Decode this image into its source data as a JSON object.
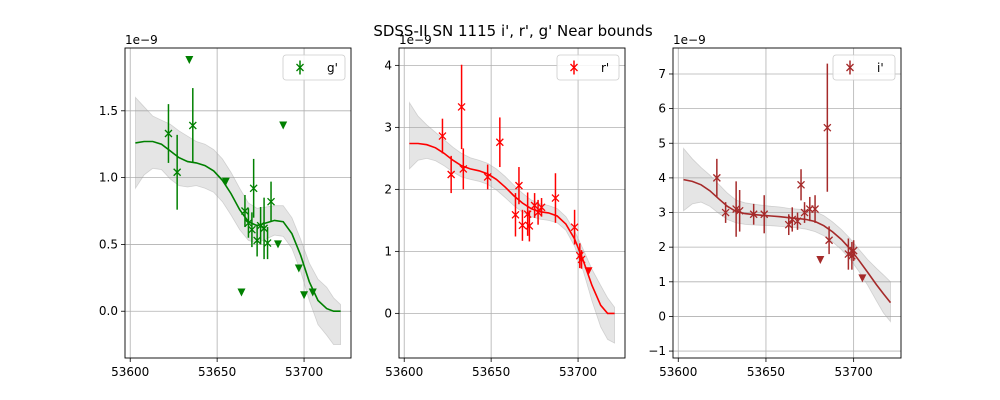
{
  "figure": {
    "title": "SDSS-II SN 1115  i', r', g' Near bounds"
  },
  "chart_data": [
    {
      "type": "scatter",
      "panel": "g",
      "exponent_label": "1e−9",
      "xlim": [
        53597,
        53727
      ],
      "ylim": [
        -0.35,
        1.97
      ],
      "xticks": [
        53600,
        53650,
        53700
      ],
      "yticks": [
        0.0,
        0.5,
        1.0,
        1.5
      ],
      "ytick_labels": [
        "0.0",
        "0.5",
        "1.0",
        "1.5"
      ],
      "grid": true,
      "legend": {
        "position": "top-right",
        "label": "g'"
      },
      "color": "#008000",
      "points": [
        {
          "x": 53622,
          "y": 1.33,
          "err": 0.22
        },
        {
          "x": 53627,
          "y": 1.04,
          "err": 0.28
        },
        {
          "x": 53636,
          "y": 1.39,
          "err": 0.28
        },
        {
          "x": 53666,
          "y": 0.75,
          "err": 0.12
        },
        {
          "x": 53668,
          "y": 0.66,
          "err": 0.11
        },
        {
          "x": 53670,
          "y": 0.61,
          "err": 0.13
        },
        {
          "x": 53671,
          "y": 0.92,
          "err": 0.22
        },
        {
          "x": 53673,
          "y": 0.53,
          "err": 0.12
        },
        {
          "x": 53675,
          "y": 0.64,
          "err": 0.14
        },
        {
          "x": 53677,
          "y": 0.62,
          "err": 0.23
        },
        {
          "x": 53679,
          "y": 0.51,
          "err": 0.12
        },
        {
          "x": 53681,
          "y": 0.82,
          "err": 0.15
        }
      ],
      "upper_limits": [
        {
          "x": 53634,
          "y": 1.88
        },
        {
          "x": 53655,
          "y": 0.97
        },
        {
          "x": 53664,
          "y": 0.14
        },
        {
          "x": 53685,
          "y": 0.5
        },
        {
          "x": 53688,
          "y": 1.39
        },
        {
          "x": 53697,
          "y": 0.32
        },
        {
          "x": 53700,
          "y": 0.12
        },
        {
          "x": 53705,
          "y": 0.14
        }
      ],
      "model": {
        "x": [
          53603,
          53608,
          53613,
          53618,
          53623,
          53628,
          53633,
          53638,
          53643,
          53648,
          53653,
          53658,
          53663,
          53668,
          53673,
          53678,
          53683,
          53688,
          53693,
          53698,
          53703,
          53708,
          53713,
          53717,
          53721
        ],
        "y": [
          1.26,
          1.27,
          1.27,
          1.25,
          1.2,
          1.15,
          1.12,
          1.11,
          1.09,
          1.05,
          0.98,
          0.88,
          0.76,
          0.67,
          0.64,
          0.66,
          0.68,
          0.67,
          0.58,
          0.42,
          0.22,
          0.08,
          0.02,
          0.0,
          0.0
        ],
        "lower": [
          0.92,
          1.02,
          1.07,
          1.06,
          0.99,
          0.94,
          0.93,
          0.94,
          0.92,
          0.89,
          0.82,
          0.72,
          0.61,
          0.53,
          0.51,
          0.54,
          0.57,
          0.56,
          0.47,
          0.3,
          0.08,
          -0.1,
          -0.18,
          -0.25,
          -0.25
        ],
        "upper": [
          1.6,
          1.53,
          1.46,
          1.43,
          1.4,
          1.35,
          1.31,
          1.27,
          1.25,
          1.21,
          1.14,
          1.04,
          0.92,
          0.81,
          0.77,
          0.78,
          0.79,
          0.79,
          0.7,
          0.54,
          0.36,
          0.24,
          0.18,
          0.1,
          0.05
        ]
      }
    },
    {
      "type": "scatter",
      "panel": "r",
      "exponent_label": "1e−9",
      "xlim": [
        53597,
        53727
      ],
      "ylim": [
        -0.72,
        4.28
      ],
      "xticks": [
        53600,
        53650,
        53700
      ],
      "yticks": [
        0,
        1,
        2,
        3,
        4
      ],
      "ytick_labels": [
        "0",
        "1",
        "2",
        "3",
        "4"
      ],
      "grid": true,
      "legend": {
        "position": "top-right",
        "label": "r'"
      },
      "color": "#ff0000",
      "points": [
        {
          "x": 53622,
          "y": 2.86,
          "err": 0.28
        },
        {
          "x": 53627,
          "y": 2.24,
          "err": 0.3
        },
        {
          "x": 53633,
          "y": 3.33,
          "err": 0.68
        },
        {
          "x": 53634,
          "y": 2.33,
          "err": 0.33
        },
        {
          "x": 53648,
          "y": 2.2,
          "err": 0.2
        },
        {
          "x": 53655,
          "y": 2.76,
          "err": 0.4
        },
        {
          "x": 53664,
          "y": 1.59,
          "err": 0.35
        },
        {
          "x": 53666,
          "y": 2.06,
          "err": 0.3
        },
        {
          "x": 53668,
          "y": 1.42,
          "err": 0.25
        },
        {
          "x": 53671,
          "y": 1.6,
          "err": 0.35
        },
        {
          "x": 53672,
          "y": 1.41,
          "err": 0.25
        },
        {
          "x": 53675,
          "y": 1.74,
          "err": 0.2
        },
        {
          "x": 53677,
          "y": 1.63,
          "err": 0.2
        },
        {
          "x": 53679,
          "y": 1.71,
          "err": 0.15
        },
        {
          "x": 53687,
          "y": 1.86,
          "err": 0.4
        },
        {
          "x": 53698,
          "y": 1.39,
          "err": 0.28
        },
        {
          "x": 53701,
          "y": 0.93,
          "err": 0.2
        },
        {
          "x": 53702,
          "y": 0.87,
          "err": 0.15
        }
      ],
      "upper_limits": [
        {
          "x": 53706,
          "y": 0.68
        }
      ],
      "model": {
        "x": [
          53603,
          53608,
          53613,
          53618,
          53623,
          53628,
          53633,
          53638,
          53643,
          53648,
          53653,
          53658,
          53663,
          53668,
          53673,
          53678,
          53683,
          53688,
          53693,
          53698,
          53703,
          53708,
          53713,
          53717,
          53721
        ],
        "y": [
          2.74,
          2.74,
          2.72,
          2.67,
          2.58,
          2.47,
          2.38,
          2.33,
          2.3,
          2.25,
          2.16,
          2.04,
          1.9,
          1.78,
          1.69,
          1.64,
          1.62,
          1.57,
          1.44,
          1.2,
          0.85,
          0.45,
          0.13,
          0.0,
          0.0
        ],
        "lower": [
          2.33,
          2.47,
          2.5,
          2.46,
          2.38,
          2.28,
          2.2,
          2.16,
          2.13,
          2.08,
          1.99,
          1.87,
          1.74,
          1.63,
          1.56,
          1.52,
          1.5,
          1.46,
          1.34,
          1.08,
          0.68,
          0.2,
          -0.22,
          -0.42,
          -0.48
        ],
        "upper": [
          3.4,
          3.18,
          3.04,
          2.92,
          2.8,
          2.68,
          2.58,
          2.51,
          2.47,
          2.42,
          2.33,
          2.21,
          2.07,
          1.94,
          1.83,
          1.77,
          1.74,
          1.69,
          1.56,
          1.33,
          1.03,
          0.71,
          0.45,
          0.25,
          0.1
        ]
      }
    },
    {
      "type": "scatter",
      "panel": "i",
      "exponent_label": "1e−9",
      "xlim": [
        53597,
        53727
      ],
      "ylim": [
        -1.2,
        7.75
      ],
      "xticks": [
        53600,
        53650,
        53700
      ],
      "yticks": [
        -1,
        0,
        1,
        2,
        3,
        4,
        5,
        6,
        7
      ],
      "ytick_labels": [
        "−1",
        "0",
        "1",
        "2",
        "3",
        "4",
        "5",
        "6",
        "7"
      ],
      "grid": true,
      "legend": {
        "position": "top-right",
        "label": "i'"
      },
      "color": "#a52a2a",
      "points": [
        {
          "x": 53622,
          "y": 4.0,
          "err": 0.55
        },
        {
          "x": 53627,
          "y": 3.0,
          "err": 0.3
        },
        {
          "x": 53633,
          "y": 3.1,
          "err": 0.8
        },
        {
          "x": 53635,
          "y": 3.05,
          "err": 0.6
        },
        {
          "x": 53643,
          "y": 2.95,
          "err": 0.3
        },
        {
          "x": 53649,
          "y": 2.95,
          "err": 0.55
        },
        {
          "x": 53663,
          "y": 2.65,
          "err": 0.3
        },
        {
          "x": 53665,
          "y": 2.8,
          "err": 0.35
        },
        {
          "x": 53668,
          "y": 2.75,
          "err": 0.25
        },
        {
          "x": 53670,
          "y": 3.8,
          "err": 0.45
        },
        {
          "x": 53672,
          "y": 3.0,
          "err": 0.3
        },
        {
          "x": 53675,
          "y": 3.1,
          "err": 0.35
        },
        {
          "x": 53678,
          "y": 3.1,
          "err": 0.4
        },
        {
          "x": 53685,
          "y": 5.45,
          "err": 1.85
        },
        {
          "x": 53686,
          "y": 2.2,
          "err": 0.4
        },
        {
          "x": 53697,
          "y": 1.8,
          "err": 0.45
        },
        {
          "x": 53699,
          "y": 1.75,
          "err": 0.4
        },
        {
          "x": 53700,
          "y": 1.9,
          "err": 0.3
        }
      ],
      "upper_limits": [
        {
          "x": 53681,
          "y": 1.63
        },
        {
          "x": 53705,
          "y": 1.1
        }
      ],
      "model": {
        "x": [
          53603,
          53608,
          53613,
          53618,
          53623,
          53628,
          53633,
          53638,
          53643,
          53648,
          53653,
          53658,
          53663,
          53668,
          53673,
          53678,
          53683,
          53688,
          53693,
          53698,
          53703,
          53708,
          53713,
          53717,
          53721
        ],
        "y": [
          3.95,
          3.9,
          3.8,
          3.63,
          3.4,
          3.18,
          3.03,
          2.97,
          2.94,
          2.92,
          2.9,
          2.88,
          2.85,
          2.83,
          2.8,
          2.74,
          2.62,
          2.44,
          2.22,
          1.95,
          1.62,
          1.27,
          0.92,
          0.65,
          0.4
        ],
        "lower": [
          3.05,
          3.25,
          3.3,
          3.18,
          2.98,
          2.8,
          2.7,
          2.66,
          2.64,
          2.63,
          2.62,
          2.6,
          2.58,
          2.56,
          2.52,
          2.45,
          2.33,
          2.15,
          1.93,
          1.65,
          1.3,
          0.9,
          0.45,
          0.1,
          -0.15
        ],
        "upper": [
          4.85,
          4.55,
          4.3,
          4.08,
          3.82,
          3.56,
          3.36,
          3.28,
          3.24,
          3.21,
          3.18,
          3.16,
          3.12,
          3.1,
          3.08,
          3.03,
          2.91,
          2.73,
          2.51,
          2.25,
          1.94,
          1.64,
          1.39,
          1.2,
          1.0
        ]
      }
    }
  ]
}
